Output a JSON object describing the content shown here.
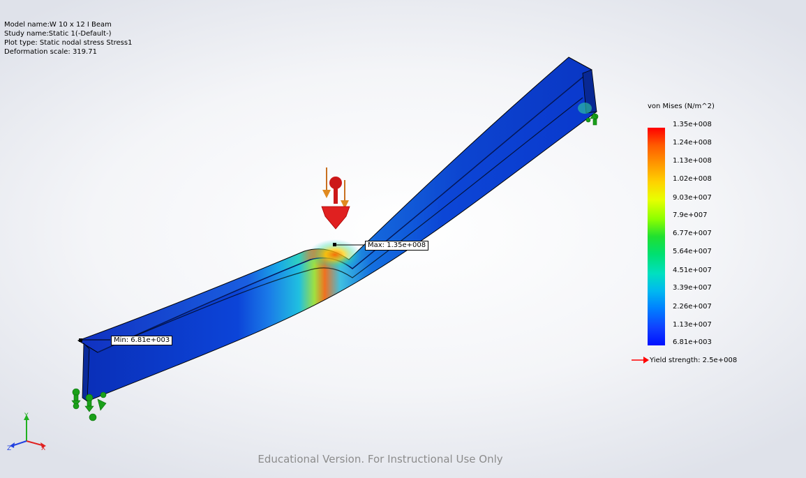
{
  "info": {
    "model_name": "Model name:W 10 x 12 I Beam",
    "study_name": "Study name:Static 1(-Default-)",
    "plot_type": "Plot type: Static nodal stress Stress1",
    "deformation_scale": "Deformation scale: 319.71"
  },
  "legend": {
    "title": "von Mises (N/m^2)",
    "ticks": [
      "1.35e+008",
      "1.24e+008",
      "1.13e+008",
      "1.02e+008",
      "9.03e+007",
      "7.9e+007",
      "6.77e+007",
      "5.64e+007",
      "4.51e+007",
      "3.39e+007",
      "2.26e+007",
      "1.13e+007",
      "6.81e+003"
    ],
    "yield_label": "Yield strength: 2.5e+008"
  },
  "probes": {
    "max_label": "Max: 1.35e+008",
    "min_label": "Min: 6.81e+003"
  },
  "triad": {
    "x": "X",
    "y": "Y",
    "z": "Z"
  },
  "watermark": "Educational Version. For Instructional Use Only",
  "colors": {
    "beam_blue": "#0a37c8",
    "load_red": "#c81e1e",
    "fixture_green": "#1aa01a",
    "yield_arrow": "#ff0000"
  },
  "icons": [
    "load-arrow-icon",
    "fixture-icon",
    "triad-icon",
    "yield-arrow-icon"
  ]
}
